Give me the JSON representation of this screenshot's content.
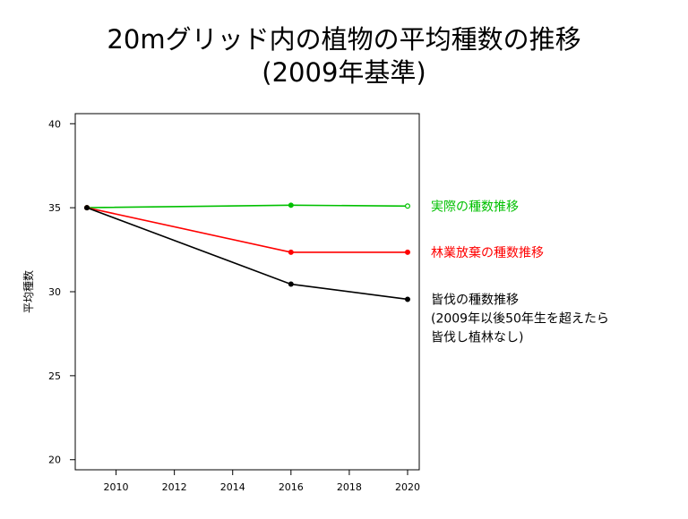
{
  "title": {
    "line1": "20mグリッド内の植物の平均種数の推移",
    "line2": "(2009年基準)"
  },
  "chart_data": {
    "type": "line",
    "ylabel": "平均種数",
    "xlabel": "",
    "xlim": [
      2008.6,
      2020.4
    ],
    "ylim": [
      19.4,
      40.6
    ],
    "xticks": [
      2010,
      2012,
      2014,
      2016,
      2018,
      2020
    ],
    "yticks": [
      20,
      25,
      30,
      35,
      40
    ],
    "grid": false,
    "legend_position": "right of plot, next to line ends",
    "series": [
      {
        "name": "実際の種数推移",
        "color": "#00c000",
        "x": [
          2009,
          2016,
          2020
        ],
        "values": [
          35.0,
          35.15,
          35.1
        ],
        "legend_lines": [
          "実際の種数推移"
        ]
      },
      {
        "name": "林業放棄の種数推移",
        "color": "#ff0000",
        "x": [
          2009,
          2016,
          2020
        ],
        "values": [
          35.0,
          32.35,
          32.35
        ],
        "legend_lines": [
          "林業放棄の種数推移"
        ]
      },
      {
        "name": "皆伐の種数推移",
        "color": "#000000",
        "x": [
          2009,
          2016,
          2020
        ],
        "values": [
          35.0,
          30.45,
          29.55
        ],
        "legend_lines": [
          "皆伐の種数推移",
          "(2009年以後50年生を超えたら",
          "皆伐し植林なし)"
        ]
      }
    ]
  }
}
